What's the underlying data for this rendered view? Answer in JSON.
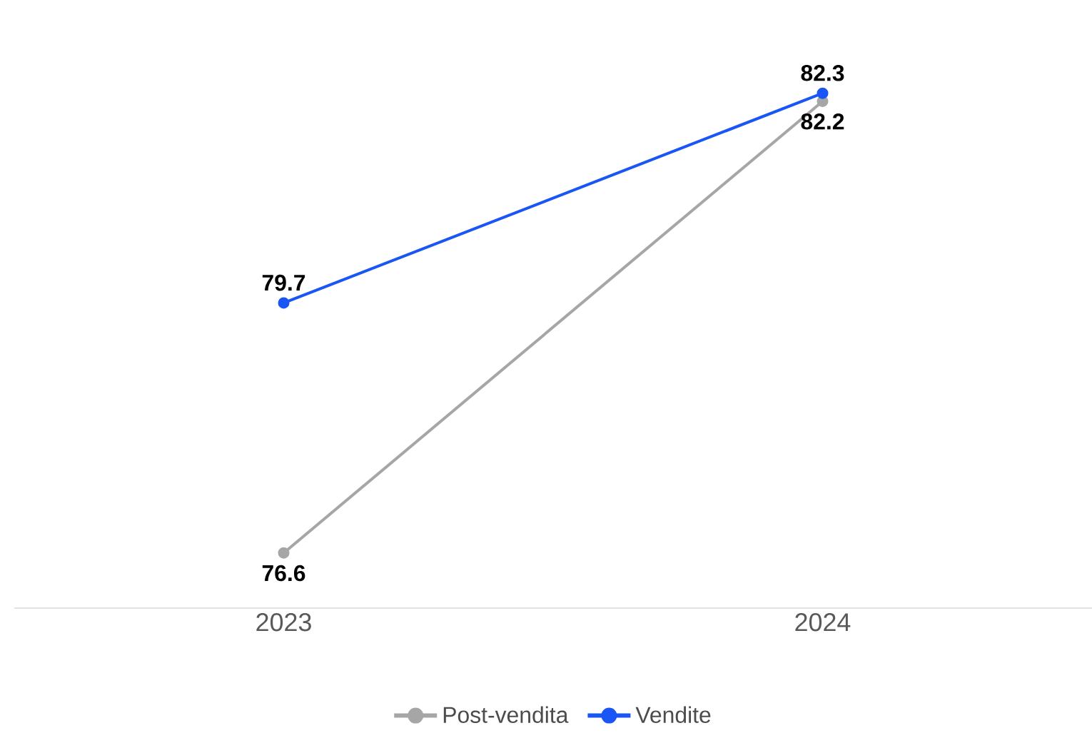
{
  "chart_data": {
    "type": "line",
    "categories": [
      "2023",
      "2024"
    ],
    "series": [
      {
        "name": "Post-vendita",
        "color": "#a6a6a6",
        "values": [
          76.6,
          82.2
        ]
      },
      {
        "name": "Vendite",
        "color": "#1a56f5",
        "values": [
          79.7,
          82.3
        ]
      }
    ],
    "data_labels": true,
    "legend": "bottom",
    "marker": "circle"
  }
}
